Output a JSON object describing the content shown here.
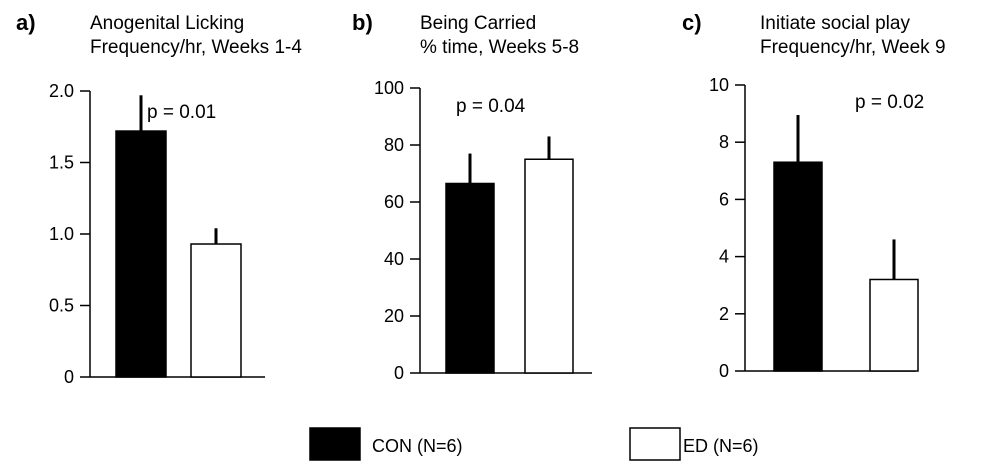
{
  "legend": [
    {
      "name": "CON (N=6)",
      "fill": "#000000"
    },
    {
      "name": "ED (N=6)",
      "fill": "#ffffff"
    }
  ],
  "chart_data": [
    {
      "type": "bar",
      "panel": "a)",
      "title_lines": [
        "Anogenital Licking",
        "Frequency/hr, Weeks 1-4"
      ],
      "categories": [
        "CON (N=6)",
        "ED (N=6)"
      ],
      "values": [
        1.72,
        0.93
      ],
      "error": [
        0.25,
        0.11
      ],
      "ylim": [
        0,
        2.0
      ],
      "yticks": [
        0,
        0.5,
        1.0,
        1.5,
        2.0
      ],
      "ytick_labels": [
        "0",
        "0.5",
        "1.0",
        "1.5",
        "2.0"
      ],
      "annotation": "p = 0.01"
    },
    {
      "type": "bar",
      "panel": "b)",
      "title_lines": [
        "Being Carried",
        "% time, Weeks 5-8"
      ],
      "categories": [
        "CON (N=6)",
        "ED (N=6)"
      ],
      "values": [
        66.5,
        75
      ],
      "error": [
        10.5,
        8
      ],
      "ylim": [
        0,
        100
      ],
      "yticks": [
        0,
        20,
        40,
        60,
        80,
        100
      ],
      "ytick_labels": [
        "0",
        "20",
        "40",
        "60",
        "80",
        "100"
      ],
      "annotation": "p = 0.04"
    },
    {
      "type": "bar",
      "panel": "c)",
      "title_lines": [
        "Initiate social play",
        "Frequency/hr, Week 9"
      ],
      "categories": [
        "CON (N=6)",
        "ED (N=6)"
      ],
      "values": [
        7.3,
        3.2
      ],
      "error": [
        1.65,
        1.4
      ],
      "ylim": [
        0,
        10
      ],
      "yticks": [
        0,
        2,
        4,
        6,
        8,
        10
      ],
      "ytick_labels": [
        "0",
        "2",
        "4",
        "6",
        "8",
        "10"
      ],
      "annotation": "p = 0.02"
    }
  ]
}
